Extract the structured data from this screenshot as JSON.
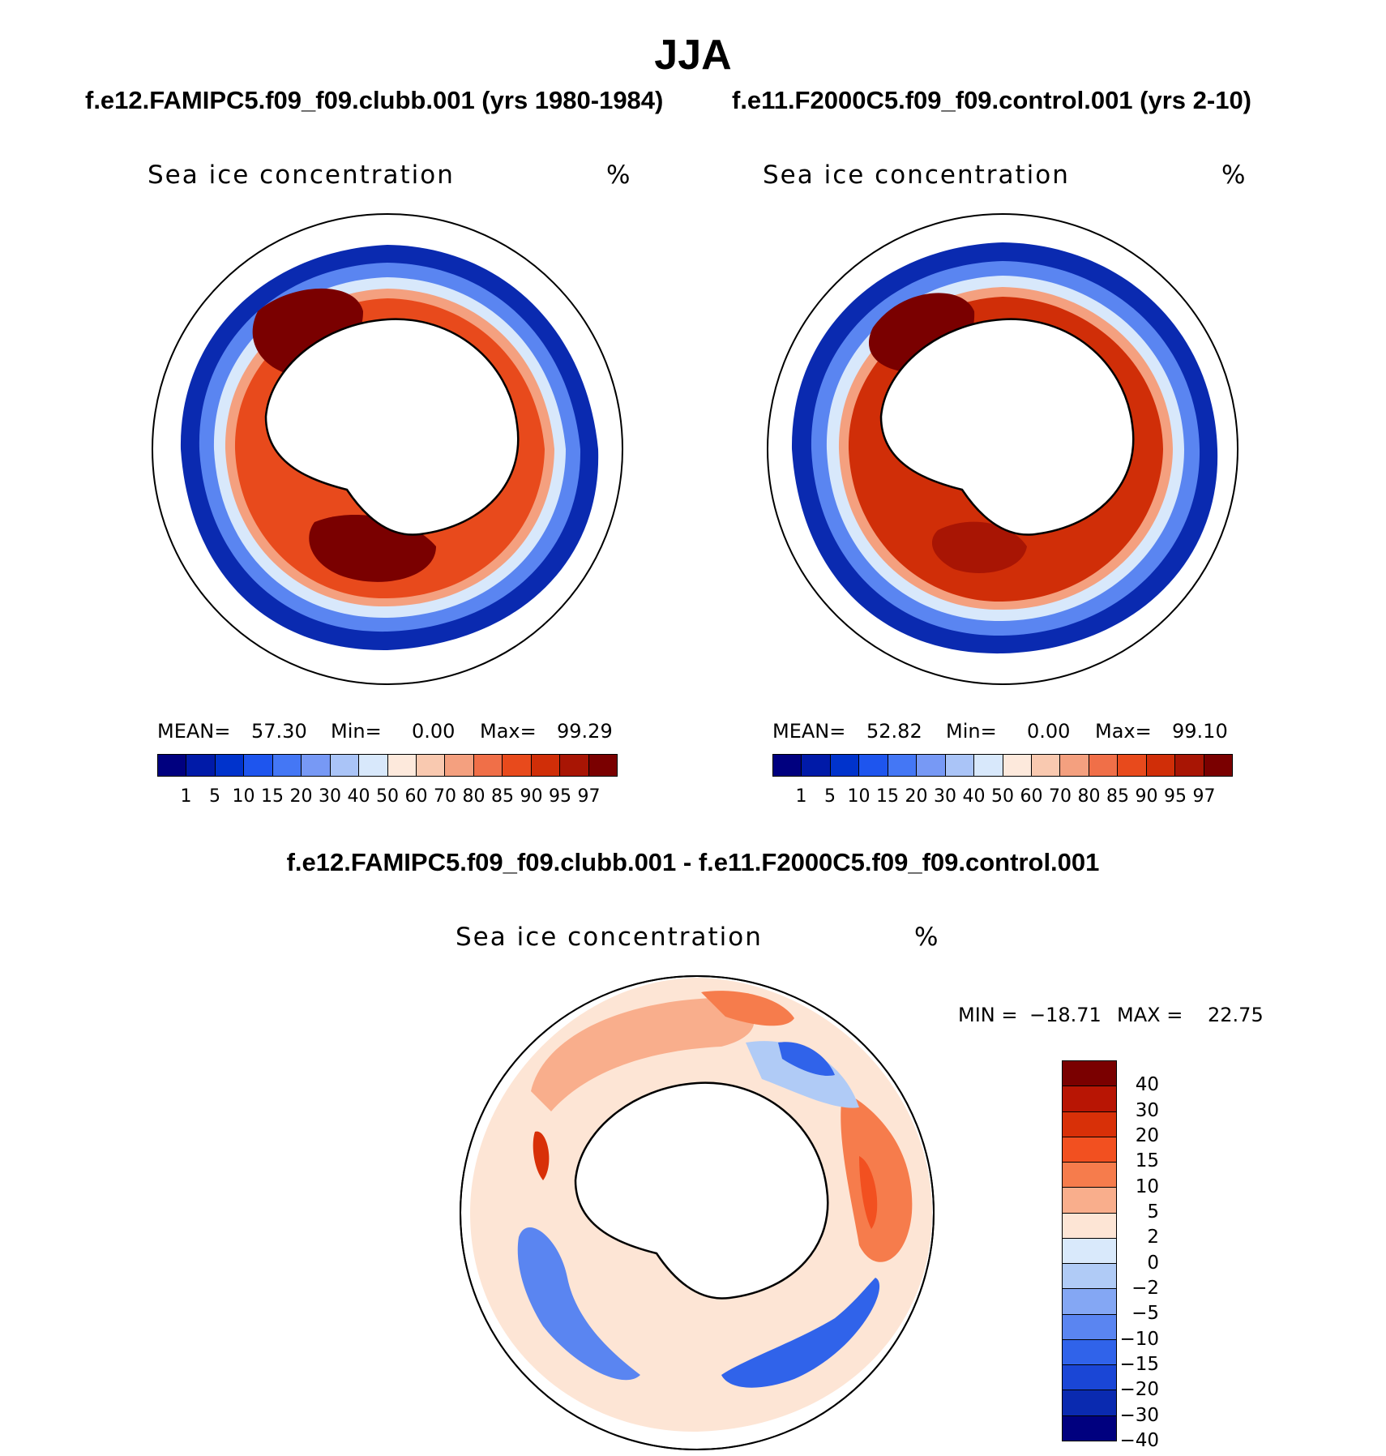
{
  "chart_data": [
    {
      "type": "heatmap",
      "projection": "south-polar-stereographic",
      "figure_title": "JJA",
      "title": "f.e12.FAMIPC5.f09_f09.clubb.001 (yrs 1980-1984)",
      "variable": "Sea ice concentration",
      "units": "%",
      "stats": {
        "mean_label": "MEAN=",
        "mean": "57.30",
        "min_label": "Min=",
        "min": "0.00",
        "max_label": "Max=",
        "max": "99.29"
      },
      "levels": [
        "1",
        "5",
        "10",
        "15",
        "20",
        "30",
        "40",
        "50",
        "60",
        "70",
        "80",
        "85",
        "90",
        "95",
        "97"
      ],
      "colorbar_orientation": "horizontal"
    },
    {
      "type": "heatmap",
      "projection": "south-polar-stereographic",
      "title": "f.e11.F2000C5.f09_f09.control.001 (yrs 2-10)",
      "variable": "Sea ice concentration",
      "units": "%",
      "stats": {
        "mean_label": "MEAN=",
        "mean": "52.82",
        "min_label": "Min=",
        "min": "0.00",
        "max_label": "Max=",
        "max": "99.10"
      },
      "levels": [
        "1",
        "5",
        "10",
        "15",
        "20",
        "30",
        "40",
        "50",
        "60",
        "70",
        "80",
        "85",
        "90",
        "95",
        "97"
      ],
      "colorbar_orientation": "horizontal"
    },
    {
      "type": "heatmap",
      "projection": "south-polar-stereographic",
      "title": "f.e12.FAMIPC5.f09_f09.clubb.001 - f.e11.F2000C5.f09_f09.control.001",
      "variable": "Sea ice concentration",
      "units": "%",
      "stats": {
        "min_label": "MIN =",
        "min": "−18.71",
        "max_label": "MAX =",
        "max": "22.75"
      },
      "levels": [
        "40",
        "30",
        "20",
        "15",
        "10",
        "5",
        "2",
        "0",
        "−2",
        "−5",
        "−10",
        "−15",
        "−20",
        "−30",
        "−40"
      ],
      "colorbar_orientation": "vertical"
    }
  ],
  "colors": {
    "abs_scale": [
      "#00007f",
      "#001aa8",
      "#0033cc",
      "#1e55ee",
      "#4477f5",
      "#7799f5",
      "#aac4f7",
      "#d8e8fb",
      "#fde9dc",
      "#f9c9b0",
      "#f4a07f",
      "#f06f48",
      "#e84a1c",
      "#d02e08",
      "#a81504",
      "#7a0000"
    ],
    "diff_scale": [
      "#7a0000",
      "#b81504",
      "#d83008",
      "#f25020",
      "#f67c4c",
      "#f9ae8c",
      "#fde5d5",
      "#d9e9fb",
      "#b0cbf6",
      "#84a7f4",
      "#5a85f1",
      "#3063ea",
      "#1a46d6",
      "#0a2ab0",
      "#00007f"
    ]
  }
}
